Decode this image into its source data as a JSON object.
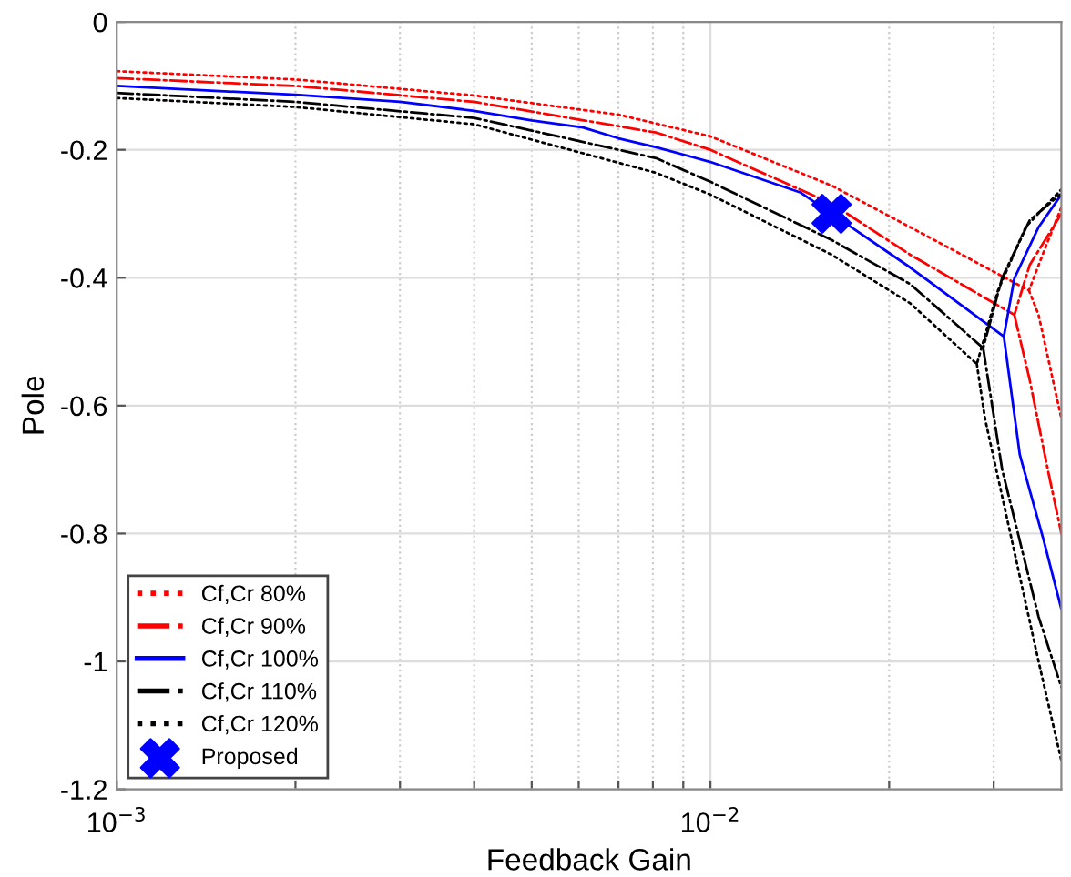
{
  "chart_data": {
    "type": "line",
    "xlabel": "Feedback Gain",
    "ylabel": "Pole",
    "log": "x",
    "grid": true,
    "legend": "bottom left",
    "xlim": [
      0.001,
      0.039
    ],
    "ylim": [
      -1.2,
      0
    ],
    "xticks": [
      {
        "value": 0.001,
        "label": "10$^{−3}$"
      },
      {
        "value": 0.002,
        "label": null
      },
      {
        "value": 0.003,
        "label": null
      },
      {
        "value": 0.004,
        "label": null
      },
      {
        "value": 0.005,
        "label": null
      },
      {
        "value": 0.006,
        "label": null
      },
      {
        "value": 0.007,
        "label": null
      },
      {
        "value": 0.008,
        "label": null
      },
      {
        "value": 0.009,
        "label": null
      },
      {
        "value": 0.01,
        "label": "10$^{−2}$"
      },
      {
        "value": 0.02,
        "label": null
      },
      {
        "value": 0.03,
        "label": null
      }
    ],
    "yticks": [
      -1.2,
      -1,
      -0.8,
      -0.6,
      -0.4,
      -0.2,
      0
    ],
    "series": [
      {
        "name": "Cf,Cr 80%",
        "color": "#ff0000",
        "line_style": "dotted",
        "marker": "none",
        "x": [
          0.001,
          0.002,
          0.004,
          0.007,
          0.01,
          0.016,
          0.0217,
          0.0344,
          0.0364,
          0.039,
          null,
          0.0344,
          0.0357,
          0.039
        ],
        "values": [
          -0.077,
          -0.09,
          -0.115,
          -0.145,
          -0.179,
          -0.256,
          -0.321,
          -0.42,
          -0.36,
          -0.29,
          null,
          -0.42,
          -0.458,
          -0.62
        ]
      },
      {
        "name": "Cf,Cr 90%",
        "color": "#ff0000",
        "line_style": "dashdot",
        "marker": "none",
        "x": [
          0.001,
          0.002,
          0.004,
          0.0081,
          0.01,
          0.016,
          0.0217,
          0.0325,
          0.0345,
          0.039,
          null,
          0.0325,
          0.0345,
          0.037,
          0.039
        ],
        "values": [
          -0.088,
          -0.1,
          -0.125,
          -0.173,
          -0.2,
          -0.284,
          -0.364,
          -0.458,
          -0.38,
          -0.3,
          null,
          -0.458,
          -0.56,
          -0.7,
          -0.8
        ]
      },
      {
        "name": "Cf,Cr 100%",
        "color": "#0000ff",
        "line_style": "solid",
        "marker": "none",
        "x": [
          0.001,
          0.002,
          0.003,
          0.004,
          0.005,
          0.0061,
          0.007,
          0.0081,
          0.01,
          0.0142,
          0.0217,
          0.0312,
          0.0325,
          0.0357,
          0.039,
          null,
          0.0312,
          0.0332,
          0.0364,
          0.039
        ],
        "values": [
          -0.1,
          -0.114,
          -0.125,
          -0.139,
          -0.154,
          -0.165,
          -0.182,
          -0.196,
          -0.219,
          -0.267,
          -0.384,
          -0.492,
          -0.401,
          -0.321,
          -0.27,
          null,
          -0.492,
          -0.677,
          -0.81,
          -0.918
        ]
      },
      {
        "name": "Cf,Cr 110%",
        "color": "#000000",
        "line_style": "dashdot",
        "marker": "none",
        "x": [
          0.001,
          0.002,
          0.004,
          0.0081,
          0.01,
          0.016,
          0.0217,
          0.0288,
          0.031,
          0.0345,
          0.0388,
          null,
          0.0288,
          0.031,
          0.0357,
          0.039
        ],
        "values": [
          -0.111,
          -0.125,
          -0.15,
          -0.213,
          -0.25,
          -0.341,
          -0.41,
          -0.51,
          -0.4,
          -0.31,
          -0.27,
          null,
          -0.51,
          -0.7,
          -0.93,
          -1.04
        ]
      },
      {
        "name": "Cf,Cr 120%",
        "color": "#000000",
        "line_style": "dotted",
        "marker": "none",
        "x": [
          0.001,
          0.002,
          0.004,
          0.0081,
          0.01,
          0.016,
          0.0217,
          0.0281,
          0.0305,
          0.034,
          0.039,
          null,
          0.0281,
          0.029,
          0.0357,
          0.039
        ],
        "values": [
          -0.119,
          -0.133,
          -0.16,
          -0.236,
          -0.27,
          -0.364,
          -0.44,
          -0.535,
          -0.42,
          -0.32,
          -0.262,
          null,
          -0.535,
          -0.62,
          -1.0,
          -1.155
        ]
      },
      {
        "name": "Proposed",
        "type": "scatter",
        "color": "#0000ff",
        "marker": "cross",
        "x": [
          0.016
        ],
        "values": [
          -0.3
        ]
      }
    ]
  }
}
